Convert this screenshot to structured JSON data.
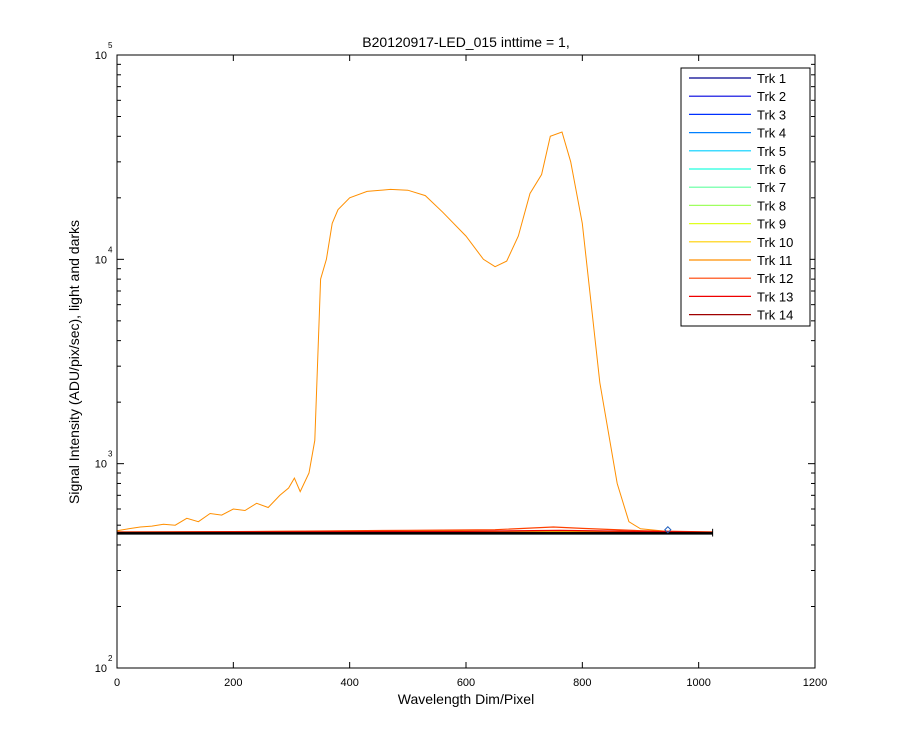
{
  "chart_data": {
    "type": "line",
    "title": "B20120917-LED_015 inttime = 1,",
    "xlabel": "Wavelength Dim/Pixel",
    "ylabel": "Signal Intensity (ADU/pix/sec), light and darks",
    "xlim": [
      0,
      1200
    ],
    "ylim": [
      100,
      100000
    ],
    "yscale": "log",
    "x_ticks": [
      "0",
      "200",
      "400",
      "600",
      "800",
      "1000",
      "1200"
    ],
    "y_ticks": [
      {
        "base": "10",
        "exp": "2"
      },
      {
        "base": "10",
        "exp": "3"
      },
      {
        "base": "10",
        "exp": "4"
      },
      {
        "base": "10",
        "exp": "5"
      }
    ],
    "grid": false,
    "legend_position": "top-right",
    "series": [
      {
        "name": "Trk 1",
        "color": "#00008f",
        "points": [
          [
            0,
            460
          ],
          [
            1024,
            460
          ]
        ]
      },
      {
        "name": "Trk 2",
        "color": "#0000df",
        "points": [
          [
            0,
            460
          ],
          [
            1024,
            460
          ]
        ]
      },
      {
        "name": "Trk 3",
        "color": "#0030ff",
        "points": [
          [
            0,
            460
          ],
          [
            1024,
            460
          ]
        ]
      },
      {
        "name": "Trk 4",
        "color": "#0080ff",
        "points": [
          [
            0,
            461
          ],
          [
            1024,
            461
          ]
        ]
      },
      {
        "name": "Trk 5",
        "color": "#00cfff",
        "points": [
          [
            0,
            461
          ],
          [
            1024,
            461
          ]
        ]
      },
      {
        "name": "Trk 6",
        "color": "#20ffdf",
        "points": [
          [
            0,
            461
          ],
          [
            1024,
            461
          ]
        ]
      },
      {
        "name": "Trk 7",
        "color": "#60ff9f",
        "points": [
          [
            0,
            462
          ],
          [
            1024,
            462
          ]
        ]
      },
      {
        "name": "Trk 8",
        "color": "#9fff60",
        "points": [
          [
            0,
            462
          ],
          [
            1024,
            462
          ]
        ]
      },
      {
        "name": "Trk 9",
        "color": "#dfff20",
        "points": [
          [
            0,
            462
          ],
          [
            1024,
            462
          ]
        ]
      },
      {
        "name": "Trk 10",
        "color": "#ffcf00",
        "points": [
          [
            0,
            463
          ],
          [
            200,
            464
          ],
          [
            400,
            468
          ],
          [
            600,
            468
          ],
          [
            800,
            466
          ],
          [
            1024,
            463
          ]
        ]
      },
      {
        "name": "Trk 11",
        "color": "#ff8f00",
        "points": [
          [
            0,
            470
          ],
          [
            20,
            480
          ],
          [
            40,
            490
          ],
          [
            60,
            495
          ],
          [
            80,
            505
          ],
          [
            100,
            500
          ],
          [
            120,
            540
          ],
          [
            140,
            520
          ],
          [
            160,
            570
          ],
          [
            180,
            560
          ],
          [
            200,
            600
          ],
          [
            220,
            590
          ],
          [
            240,
            640
          ],
          [
            260,
            610
          ],
          [
            280,
            700
          ],
          [
            295,
            760
          ],
          [
            305,
            850
          ],
          [
            315,
            730
          ],
          [
            330,
            900
          ],
          [
            340,
            1300
          ],
          [
            350,
            8000
          ],
          [
            360,
            10000
          ],
          [
            370,
            15000
          ],
          [
            380,
            17500
          ],
          [
            400,
            20000
          ],
          [
            430,
            21500
          ],
          [
            470,
            22000
          ],
          [
            500,
            21800
          ],
          [
            530,
            20500
          ],
          [
            560,
            17000
          ],
          [
            600,
            13000
          ],
          [
            630,
            10000
          ],
          [
            650,
            9200
          ],
          [
            670,
            9800
          ],
          [
            690,
            13000
          ],
          [
            710,
            21000
          ],
          [
            730,
            26000
          ],
          [
            745,
            40000
          ],
          [
            765,
            42000
          ],
          [
            780,
            30000
          ],
          [
            800,
            15000
          ],
          [
            830,
            2500
          ],
          [
            860,
            800
          ],
          [
            880,
            520
          ],
          [
            900,
            480
          ],
          [
            950,
            465
          ],
          [
            1024,
            462
          ]
        ]
      },
      {
        "name": "Trk 12",
        "color": "#ff4000",
        "points": [
          [
            0,
            463
          ],
          [
            200,
            465
          ],
          [
            350,
            468
          ],
          [
            500,
            472
          ],
          [
            650,
            475
          ],
          [
            750,
            490
          ],
          [
            800,
            482
          ],
          [
            900,
            470
          ],
          [
            1024,
            463
          ]
        ]
      },
      {
        "name": "Trk 13",
        "color": "#ef0000",
        "points": [
          [
            0,
            462
          ],
          [
            300,
            464
          ],
          [
            600,
            466
          ],
          [
            760,
            472
          ],
          [
            900,
            466
          ],
          [
            1024,
            462
          ]
        ]
      },
      {
        "name": "Trk 14",
        "color": "#9f0000",
        "points": [
          [
            0,
            461
          ],
          [
            1024,
            461
          ]
        ]
      }
    ],
    "dark_lines": [
      {
        "color": "#000000",
        "points": [
          [
            0,
            455
          ],
          [
            1024,
            455
          ]
        ]
      },
      {
        "color": "#000000",
        "points": [
          [
            0,
            457
          ],
          [
            1024,
            457
          ]
        ]
      }
    ],
    "marker": {
      "color": "#2060c0",
      "point": [
        947,
        475
      ]
    }
  }
}
